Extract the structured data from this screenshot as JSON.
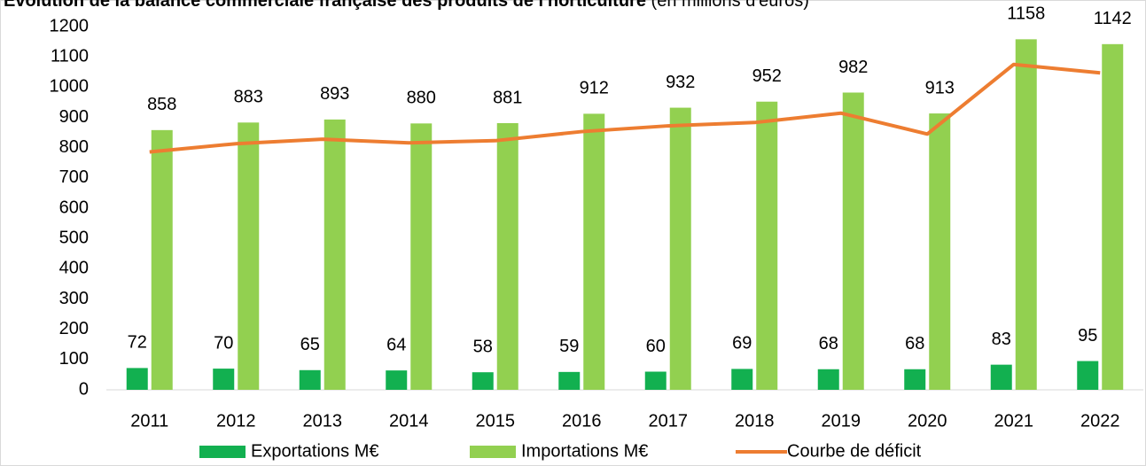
{
  "chart_data": {
    "type": "bar",
    "title": "Évolution de la balance commerciale française des produits de l'horticulture",
    "subtitle": "(en millions d'euros)",
    "categories": [
      "2011",
      "2012",
      "2013",
      "2014",
      "2015",
      "2016",
      "2017",
      "2018",
      "2019",
      "2020",
      "2021",
      "2022"
    ],
    "series": [
      {
        "name": "Exportations M€",
        "color": "#12b050",
        "type": "bar",
        "values": [
          72,
          70,
          65,
          64,
          58,
          59,
          60,
          69,
          68,
          68,
          83,
          95
        ]
      },
      {
        "name": "Importations M€",
        "color": "#92d050",
        "type": "bar",
        "values": [
          858,
          883,
          893,
          880,
          881,
          912,
          932,
          952,
          982,
          913,
          1158,
          1142
        ]
      },
      {
        "name": "Courbe de déficit",
        "color": "#ed7d31",
        "type": "line",
        "values": [
          786,
          813,
          828,
          816,
          823,
          853,
          872,
          883,
          914,
          845,
          1075,
          1047
        ]
      }
    ],
    "ylim": [
      0,
      1200
    ],
    "yticks": [
      0,
      100,
      200,
      300,
      400,
      500,
      600,
      700,
      800,
      900,
      1000,
      1100,
      1200
    ],
    "grid": false,
    "legend": "bottom"
  }
}
